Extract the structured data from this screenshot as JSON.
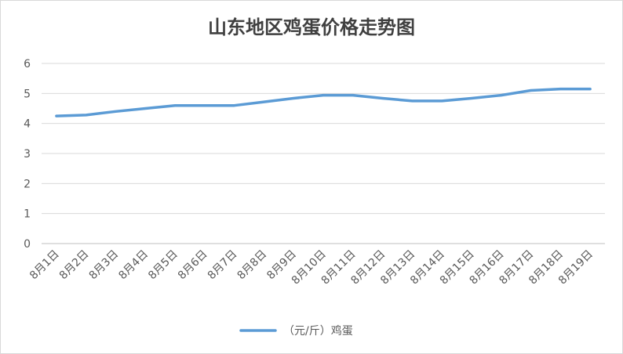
{
  "chart_data": {
    "type": "line",
    "title": "山东地区鸡蛋价格走势图",
    "categories": [
      "8月1日",
      "8月2日",
      "8月3日",
      "8月4日",
      "8月5日",
      "8月6日",
      "8月7日",
      "8月8日",
      "8月9日",
      "8月10日",
      "8月11日",
      "8月12日",
      "8月13日",
      "8月14日",
      "8月15日",
      "8月16日",
      "8月17日",
      "8月18日",
      "8月19日"
    ],
    "series": [
      {
        "name": "（元/斤）鸡蛋",
        "color": "#5B9BD5",
        "values": [
          4.25,
          4.28,
          4.4,
          4.5,
          4.6,
          4.6,
          4.6,
          4.72,
          4.84,
          4.94,
          4.94,
          4.84,
          4.75,
          4.75,
          4.84,
          4.94,
          5.1,
          5.15,
          5.15
        ]
      }
    ],
    "yticks": [
      "0",
      "1",
      "2",
      "3",
      "4",
      "5",
      "6"
    ],
    "ylim": [
      0,
      6
    ],
    "grid": true,
    "legend_position": "bottom"
  }
}
